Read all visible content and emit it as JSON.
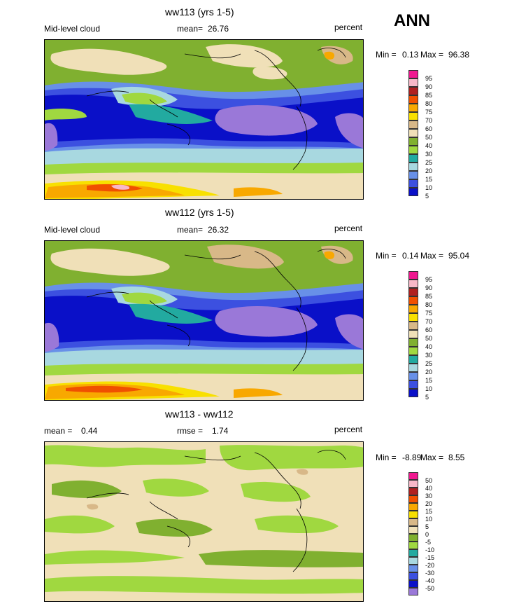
{
  "season": "ANN",
  "panels": [
    {
      "title": "ww113 (yrs 1-5)",
      "left_label": "Mid-level cloud",
      "mean_label": "mean=",
      "mean_value": "26.76",
      "units": "percent",
      "min_label": "Min =",
      "min_value": "0.13",
      "max_label": "Max =",
      "max_value": "96.38",
      "legend_labels": [
        "95",
        "90",
        "85",
        "80",
        "75",
        "70",
        "60",
        "50",
        "40",
        "30",
        "25",
        "20",
        "15",
        "10",
        "5"
      ]
    },
    {
      "title": "ww112 (yrs 1-5)",
      "left_label": "Mid-level cloud",
      "mean_label": "mean=",
      "mean_value": "26.32",
      "units": "percent",
      "min_label": "Min =",
      "min_value": "0.14",
      "max_label": "Max =",
      "max_value": "95.04",
      "legend_labels": [
        "95",
        "90",
        "85",
        "80",
        "75",
        "70",
        "60",
        "50",
        "40",
        "30",
        "25",
        "20",
        "15",
        "10",
        "5"
      ]
    },
    {
      "title": "ww113 - ww112",
      "left_label": "mean =",
      "left_value": "0.44",
      "mean_label": "rmse =",
      "mean_value": "1.74",
      "units": "percent",
      "min_label": "Min =",
      "min_value": "-8.89",
      "max_label": "Max =",
      "max_value": "8.55",
      "legend_labels": [
        "50",
        "40",
        "30",
        "20",
        "15",
        "10",
        "5",
        "0",
        "-5",
        "-10",
        "-15",
        "-20",
        "-30",
        "-40",
        "-50"
      ]
    }
  ],
  "colors": {
    "field_scale": [
      "#e8e8f8",
      "#9a78d8",
      "#0a10c8",
      "#3c50e0",
      "#6890e8",
      "#a8d8e0",
      "#22aaa0",
      "#a0d840",
      "#80b030",
      "#f0e0b8",
      "#d8b888",
      "#f8e000",
      "#f8a800",
      "#f05000",
      "#b02020",
      "#f8b8c8",
      "#f01890"
    ],
    "diff_scale": [
      "#9a78d8",
      "#0a10c8",
      "#3c50e0",
      "#6890e8",
      "#a8d8e0",
      "#22aaa0",
      "#a0d840",
      "#80b030",
      "#f0e0b8",
      "#d8b888",
      "#f8e000",
      "#f8a800",
      "#f05000",
      "#b02020",
      "#f8b8c8",
      "#f01890"
    ]
  }
}
